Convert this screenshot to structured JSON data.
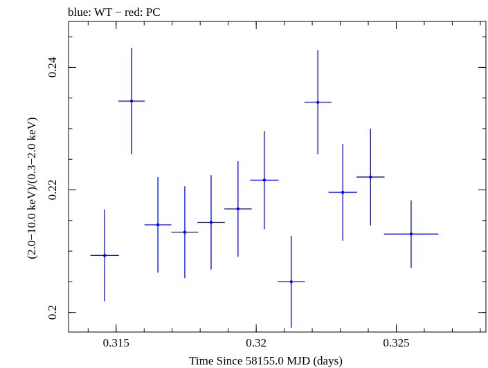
{
  "chart_data": {
    "type": "scatter",
    "title": "blue: WT − red: PC",
    "xlabel": "Time Since 58155.0 MJD (days)",
    "ylabel": "(2.0−10.0 keV)/(0.3−2.0 keV)",
    "xlim": [
      0.3133,
      0.3282
    ],
    "ylim": [
      0.1968,
      0.2475
    ],
    "x_ticks": [
      {
        "value": 0.315,
        "label": "0.315"
      },
      {
        "value": 0.32,
        "label": "0.32"
      },
      {
        "value": 0.325,
        "label": "0.325"
      }
    ],
    "y_ticks": [
      {
        "value": 0.2,
        "label": "0.2"
      },
      {
        "value": 0.22,
        "label": "0.22"
      },
      {
        "value": 0.24,
        "label": "0.24"
      }
    ],
    "x_minor_step": 0.001,
    "y_minor_step": 0.005,
    "grid": false,
    "series": [
      {
        "color": "#0000ff",
        "points": [
          {
            "x": 0.31459,
            "xerr": 0.00051,
            "y": 0.2093,
            "yerr": 0.0075
          },
          {
            "x": 0.31555,
            "xerr": 0.00047,
            "y": 0.2345,
            "yerr": 0.0087
          },
          {
            "x": 0.31649,
            "xerr": 0.00048,
            "y": 0.2143,
            "yerr": 0.0078
          },
          {
            "x": 0.31745,
            "xerr": 0.00048,
            "y": 0.2131,
            "yerr": 0.0075
          },
          {
            "x": 0.31839,
            "xerr": 0.00049,
            "y": 0.2147,
            "yerr": 0.0077
          },
          {
            "x": 0.31935,
            "xerr": 0.00049,
            "y": 0.2169,
            "yerr": 0.0078
          },
          {
            "x": 0.32029,
            "xerr": 0.00051,
            "y": 0.2216,
            "yerr": 0.008
          },
          {
            "x": 0.32125,
            "xerr": 0.00049,
            "y": 0.205,
            "yerr": 0.0075
          },
          {
            "x": 0.3222,
            "xerr": 0.00048,
            "y": 0.2343,
            "yerr": 0.0085
          },
          {
            "x": 0.32309,
            "xerr": 0.00051,
            "y": 0.2196,
            "yerr": 0.0079
          },
          {
            "x": 0.32408,
            "xerr": 0.0005,
            "y": 0.2221,
            "yerr": 0.0079
          },
          {
            "x": 0.32553,
            "xerr": 0.00097,
            "y": 0.2128,
            "yerr": 0.0055
          }
        ]
      }
    ]
  }
}
